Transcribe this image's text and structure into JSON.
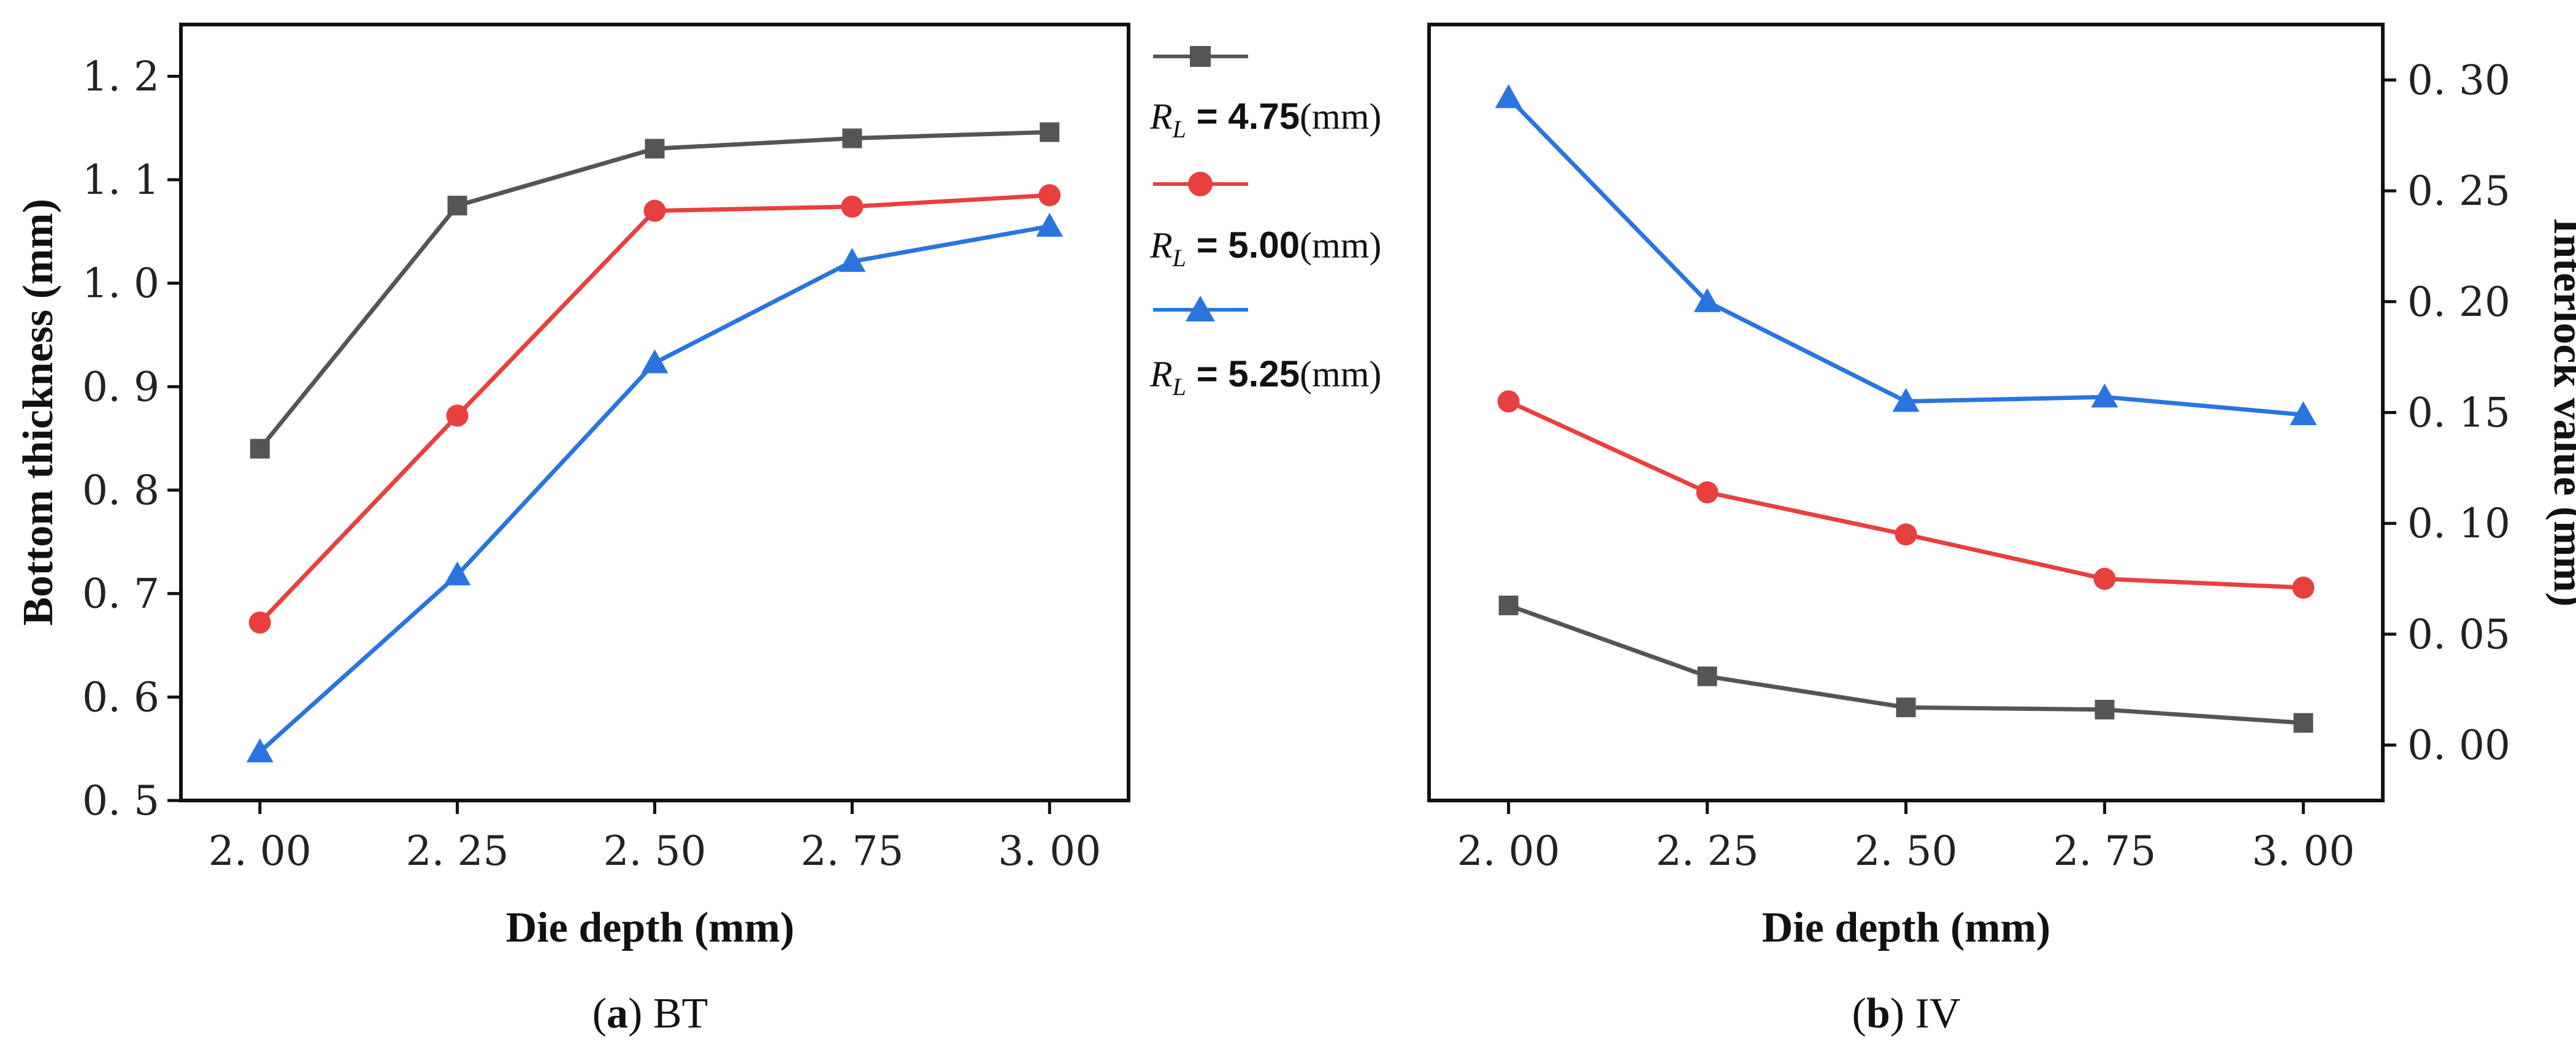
{
  "colors": {
    "s1": "#555555",
    "s2": "#e8403f",
    "s3": "#2a74e0"
  },
  "legend": [
    {
      "symbol": "R",
      "subscript": "L",
      "value": " = 4.75",
      "unit": "(mm)",
      "marker": "square",
      "color": "#555555"
    },
    {
      "symbol": "R",
      "subscript": "L",
      "value": " = 5.00",
      "unit": "(mm)",
      "marker": "circle",
      "color": "#e8403f"
    },
    {
      "symbol": "R",
      "subscript": "L",
      "value": " = 5.25",
      "unit": "(mm)",
      "marker": "triangle",
      "color": "#2a74e0"
    }
  ],
  "captions": {
    "a": {
      "letter": "a",
      "text": " BT"
    },
    "b": {
      "letter": "b",
      "text": " IV"
    }
  },
  "chart_data": [
    {
      "type": "line",
      "title": "",
      "xlabel": "Die depth (mm)",
      "ylabel": "Bottom thickness (mm)",
      "x": [
        2.0,
        2.25,
        2.5,
        2.75,
        3.0
      ],
      "x_ticks": [
        "2. 00",
        "2. 25",
        "2. 50",
        "2. 75",
        "3. 00"
      ],
      "y_ticks": [
        "0. 5",
        "0. 6",
        "0. 7",
        "0. 8",
        "0. 9",
        "1. 0",
        "1. 1",
        "1. 2"
      ],
      "y_tick_values": [
        0.5,
        0.6,
        0.7,
        0.8,
        0.9,
        1.0,
        1.1,
        1.2
      ],
      "ylim": [
        0.5,
        1.25
      ],
      "series": [
        {
          "name": "R_L = 4.75(mm)",
          "values": [
            0.84,
            1.075,
            1.13,
            1.14,
            1.146
          ]
        },
        {
          "name": "R_L = 5.00(mm)",
          "values": [
            0.672,
            0.872,
            1.07,
            1.074,
            1.085
          ]
        },
        {
          "name": "R_L = 5.25(mm)",
          "values": [
            0.547,
            0.718,
            0.923,
            1.021,
            1.055
          ]
        }
      ]
    },
    {
      "type": "line",
      "title": "",
      "xlabel": "Die depth (mm)",
      "ylabel": "Interlock value (mm)",
      "x": [
        2.0,
        2.25,
        2.5,
        2.75,
        3.0
      ],
      "x_ticks": [
        "2. 00",
        "2. 25",
        "2. 50",
        "2. 75",
        "3. 00"
      ],
      "y_ticks": [
        "0. 00",
        "0. 05",
        "0. 10",
        "0. 15",
        "0. 20",
        "0. 25",
        "0. 30"
      ],
      "y_tick_values": [
        0.0,
        0.05,
        0.1,
        0.15,
        0.2,
        0.25,
        0.3
      ],
      "ylim": [
        -0.025,
        0.325
      ],
      "series": [
        {
          "name": "R_L = 4.75(mm)",
          "values": [
            0.063,
            0.031,
            0.017,
            0.016,
            0.01
          ]
        },
        {
          "name": "R_L = 5.00(mm)",
          "values": [
            0.155,
            0.114,
            0.095,
            0.075,
            0.071
          ]
        },
        {
          "name": "R_L = 5.25(mm)",
          "values": [
            0.292,
            0.2,
            0.155,
            0.157,
            0.149
          ]
        }
      ]
    }
  ]
}
